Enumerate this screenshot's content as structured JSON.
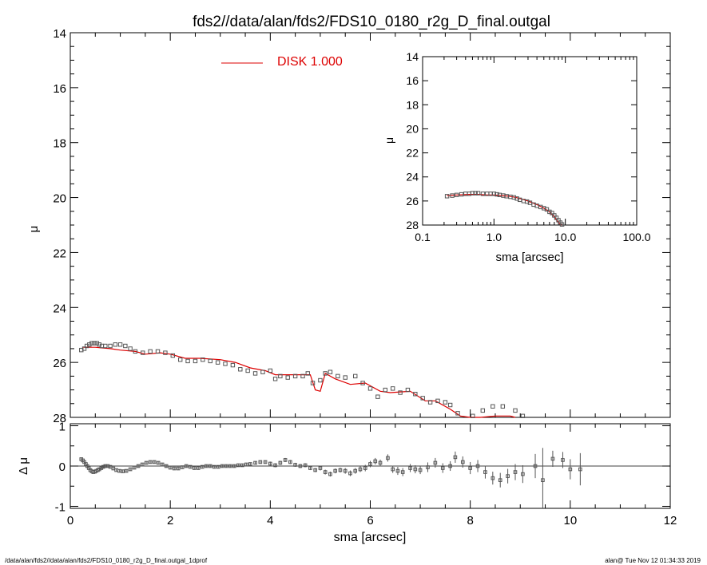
{
  "title": "fds2//data/alan/fds2/FDS10_0180_r2g_D_final.outgal",
  "footer": {
    "left": "/data/alan/fds2//data/alan/fds2/FDS10_0180_r2g_D_final.outgal_1dprof",
    "right": "alan@  Tue Nov 12 01:34:33 2019"
  },
  "colors": {
    "model": "#dd0000",
    "data": "#555555",
    "axes": "#000000"
  },
  "chart_data": [
    {
      "id": "main",
      "type": "scatter",
      "xlabel": "",
      "ylabel": "μ",
      "xlim": [
        0,
        12
      ],
      "ylim": [
        28,
        14
      ],
      "xticks": [
        0,
        2,
        4,
        6,
        8,
        10,
        12
      ],
      "yticks": [
        14,
        16,
        18,
        20,
        22,
        24,
        26,
        28
      ],
      "yticklabels": [
        "14",
        "16",
        "18",
        "20",
        "22",
        "24",
        "26",
        "28"
      ],
      "legend": {
        "label": "DISK  1.000",
        "color": "#dd0000",
        "position": "top-center"
      },
      "series": [
        {
          "name": "DISK  1.000",
          "kind": "line",
          "color": "#dd0000",
          "x": [
            0.25,
            0.5,
            0.8,
            1.0,
            1.3,
            1.5,
            1.8,
            2.0,
            2.3,
            2.6,
            3.0,
            3.3,
            3.6,
            3.9,
            4.1,
            4.5,
            4.8,
            4.9,
            5.0,
            5.1,
            5.3,
            5.6,
            5.9,
            6.2,
            6.4,
            6.8,
            7.1,
            7.3,
            7.6,
            7.8,
            8.0,
            8.2,
            8.5,
            8.8,
            8.9
          ],
          "y": [
            25.45,
            25.45,
            25.5,
            25.55,
            25.6,
            25.7,
            25.65,
            25.7,
            25.85,
            25.85,
            25.9,
            26.0,
            26.2,
            26.3,
            26.45,
            26.45,
            26.45,
            27.0,
            27.05,
            26.4,
            26.6,
            26.8,
            26.75,
            27.05,
            27.1,
            27.05,
            27.4,
            27.4,
            27.7,
            27.95,
            28.0,
            28.0,
            27.95,
            27.95,
            28.0
          ]
        },
        {
          "name": "",
          "kind": "markers",
          "color": "#555555",
          "x": [
            0.22,
            0.28,
            0.33,
            0.38,
            0.43,
            0.48,
            0.53,
            0.58,
            0.63,
            0.7,
            0.8,
            0.9,
            1.0,
            1.1,
            1.2,
            1.3,
            1.45,
            1.6,
            1.75,
            1.9,
            2.05,
            2.2,
            2.35,
            2.5,
            2.65,
            2.8,
            2.95,
            3.1,
            3.25,
            3.4,
            3.55,
            3.7,
            3.85,
            4.0,
            4.1,
            4.2,
            4.35,
            4.5,
            4.65,
            4.75,
            4.85,
            5.0,
            5.1,
            5.2,
            5.35,
            5.5,
            5.7,
            5.85,
            6.0,
            6.15,
            6.3,
            6.45,
            6.6,
            6.75,
            6.9,
            7.05,
            7.2,
            7.35,
            7.5,
            7.6,
            7.75,
            8.05,
            8.25,
            8.45,
            8.65,
            8.9,
            9.05
          ],
          "y": [
            25.55,
            25.5,
            25.4,
            25.35,
            25.3,
            25.3,
            25.3,
            25.35,
            25.4,
            25.4,
            25.4,
            25.35,
            25.35,
            25.4,
            25.5,
            25.6,
            25.65,
            25.6,
            25.6,
            25.65,
            25.75,
            25.9,
            25.95,
            25.95,
            25.9,
            25.95,
            26.0,
            26.05,
            26.1,
            26.25,
            26.3,
            26.4,
            26.35,
            26.3,
            26.6,
            26.5,
            26.55,
            26.5,
            26.5,
            26.4,
            26.75,
            26.65,
            26.4,
            26.35,
            26.5,
            26.55,
            26.5,
            26.75,
            26.95,
            27.25,
            27.0,
            26.95,
            27.1,
            27.0,
            27.15,
            27.3,
            27.45,
            27.4,
            27.45,
            27.55,
            27.85,
            27.95,
            27.75,
            27.6,
            27.6,
            27.75,
            27.95
          ]
        }
      ]
    },
    {
      "id": "inset",
      "type": "scatter",
      "xlabel": "sma [arcsec]",
      "ylabel": "μ",
      "xscale": "log",
      "xlim": [
        0.1,
        100.0
      ],
      "ylim": [
        28,
        14
      ],
      "xticks": [
        0.1,
        1.0,
        10.0,
        100.0
      ],
      "xticklabels": [
        "0.1",
        "1.0",
        "10.0",
        "100.0"
      ],
      "yticks": [
        14,
        16,
        18,
        20,
        22,
        24,
        26,
        28
      ],
      "yticklabels": [
        "14",
        "16",
        "18",
        "20",
        "22",
        "24",
        "26",
        "28"
      ],
      "series": [
        {
          "name": "",
          "kind": "line",
          "color": "#dd0000",
          "x": [
            0.22,
            0.3,
            0.45,
            0.6,
            0.8,
            1.0,
            1.3,
            1.6,
            2.0,
            2.5,
            3.0,
            4.0,
            5.0,
            6.0,
            7.0,
            8.0,
            8.9
          ],
          "y": [
            25.55,
            25.5,
            25.45,
            25.45,
            25.5,
            25.5,
            25.55,
            25.6,
            25.7,
            25.85,
            26.0,
            26.3,
            26.6,
            26.9,
            27.3,
            27.8,
            28.0
          ]
        },
        {
          "name": "",
          "kind": "markers",
          "color": "#555555",
          "x": [
            0.22,
            0.26,
            0.3,
            0.35,
            0.4,
            0.45,
            0.5,
            0.55,
            0.6,
            0.7,
            0.8,
            0.9,
            1.0,
            1.1,
            1.2,
            1.35,
            1.5,
            1.7,
            1.9,
            2.1,
            2.3,
            2.6,
            2.9,
            3.2,
            3.6,
            4.0,
            4.5,
            5.0,
            5.5,
            6.0,
            6.5,
            7.0,
            7.5,
            8.0,
            8.5,
            9.0
          ],
          "y": [
            25.6,
            25.55,
            25.5,
            25.45,
            25.4,
            25.4,
            25.35,
            25.35,
            25.35,
            25.4,
            25.4,
            25.4,
            25.4,
            25.45,
            25.5,
            25.55,
            25.6,
            25.65,
            25.7,
            25.8,
            25.9,
            26.0,
            26.05,
            26.15,
            26.3,
            26.4,
            26.5,
            26.6,
            26.7,
            26.9,
            27.0,
            27.2,
            27.4,
            27.6,
            27.8,
            27.95
          ]
        }
      ]
    },
    {
      "id": "residual",
      "type": "scatter",
      "xlabel": "sma [arcsec]",
      "ylabel": "Δ μ",
      "xlim": [
        0,
        12
      ],
      "ylim": [
        -1.05,
        1.05
      ],
      "xticks": [
        0,
        2,
        4,
        6,
        8,
        10,
        12
      ],
      "xticklabels": [
        "0",
        "2",
        "4",
        "6",
        "8",
        "10",
        "12"
      ],
      "yticks": [
        1,
        0,
        -1
      ],
      "yticklabels": [
        "1",
        "0",
        "-1"
      ],
      "zero_line": true,
      "series": [
        {
          "name": "",
          "kind": "markers_with_errors",
          "color": "#555555",
          "x": [
            0.22,
            0.25,
            0.28,
            0.31,
            0.34,
            0.37,
            0.4,
            0.43,
            0.46,
            0.49,
            0.52,
            0.55,
            0.58,
            0.62,
            0.66,
            0.7,
            0.75,
            0.8,
            0.86,
            0.92,
            0.98,
            1.05,
            1.12,
            1.2,
            1.28,
            1.36,
            1.44,
            1.52,
            1.6,
            1.68,
            1.76,
            1.84,
            1.92,
            2.0,
            2.08,
            2.16,
            2.24,
            2.32,
            2.4,
            2.48,
            2.56,
            2.64,
            2.72,
            2.8,
            2.88,
            2.96,
            3.04,
            3.12,
            3.2,
            3.28,
            3.36,
            3.44,
            3.52,
            3.6,
            3.7,
            3.8,
            3.9,
            4.0,
            4.1,
            4.2,
            4.3,
            4.4,
            4.5,
            4.6,
            4.7,
            4.8,
            4.9,
            5.0,
            5.1,
            5.2,
            5.3,
            5.4,
            5.5,
            5.6,
            5.7,
            5.8,
            5.9,
            6.0,
            6.1,
            6.2,
            6.35,
            6.45,
            6.55,
            6.65,
            6.8,
            6.9,
            7.0,
            7.15,
            7.3,
            7.45,
            7.6,
            7.7,
            7.85,
            8.0,
            8.15,
            8.3,
            8.45,
            8.6,
            8.75,
            8.9,
            9.05,
            9.3,
            9.45,
            9.65,
            9.85,
            10.0,
            10.2
          ],
          "y": [
            0.17,
            0.14,
            0.1,
            0.05,
            0.0,
            -0.05,
            -0.1,
            -0.13,
            -0.15,
            -0.14,
            -0.12,
            -0.1,
            -0.08,
            -0.05,
            -0.02,
            0.0,
            0.0,
            -0.02,
            -0.06,
            -0.1,
            -0.12,
            -0.13,
            -0.12,
            -0.08,
            -0.04,
            0.0,
            0.04,
            0.08,
            0.1,
            0.1,
            0.08,
            0.04,
            0.0,
            -0.04,
            -0.06,
            -0.06,
            -0.03,
            0.0,
            -0.02,
            -0.05,
            -0.05,
            -0.02,
            0.0,
            0.0,
            -0.02,
            -0.02,
            0.0,
            0.0,
            0.0,
            0.0,
            0.02,
            0.02,
            0.04,
            0.05,
            0.08,
            0.1,
            0.1,
            0.06,
            0.02,
            0.08,
            0.15,
            0.1,
            0.03,
            0.0,
            0.02,
            -0.05,
            -0.1,
            -0.05,
            -0.15,
            -0.2,
            -0.12,
            -0.1,
            -0.12,
            -0.18,
            -0.12,
            -0.08,
            -0.05,
            0.05,
            0.12,
            0.08,
            0.2,
            -0.08,
            -0.12,
            -0.15,
            -0.05,
            -0.08,
            -0.1,
            -0.03,
            0.08,
            -0.05,
            0.0,
            0.22,
            0.1,
            -0.05,
            0.0,
            -0.15,
            -0.3,
            -0.35,
            -0.25,
            -0.15,
            -0.2,
            0.0,
            -0.35,
            0.18,
            0.15,
            -0.08,
            -0.08
          ],
          "yerr": [
            0.03,
            0.03,
            0.03,
            0.03,
            0.03,
            0.03,
            0.03,
            0.03,
            0.03,
            0.03,
            0.03,
            0.03,
            0.03,
            0.03,
            0.03,
            0.03,
            0.03,
            0.03,
            0.03,
            0.03,
            0.03,
            0.03,
            0.03,
            0.03,
            0.03,
            0.03,
            0.03,
            0.03,
            0.03,
            0.03,
            0.03,
            0.03,
            0.03,
            0.03,
            0.03,
            0.03,
            0.03,
            0.03,
            0.03,
            0.03,
            0.03,
            0.03,
            0.03,
            0.03,
            0.03,
            0.03,
            0.03,
            0.03,
            0.03,
            0.03,
            0.04,
            0.04,
            0.04,
            0.04,
            0.04,
            0.04,
            0.04,
            0.05,
            0.05,
            0.05,
            0.05,
            0.05,
            0.05,
            0.05,
            0.05,
            0.05,
            0.05,
            0.06,
            0.06,
            0.06,
            0.06,
            0.06,
            0.07,
            0.07,
            0.07,
            0.07,
            0.08,
            0.08,
            0.08,
            0.08,
            0.09,
            0.09,
            0.1,
            0.1,
            0.1,
            0.1,
            0.1,
            0.12,
            0.12,
            0.12,
            0.12,
            0.14,
            0.14,
            0.15,
            0.15,
            0.16,
            0.16,
            0.18,
            0.18,
            0.2,
            0.22,
            0.3,
            0.8,
            0.2,
            0.2,
            0.25,
            0.4
          ]
        }
      ]
    }
  ]
}
